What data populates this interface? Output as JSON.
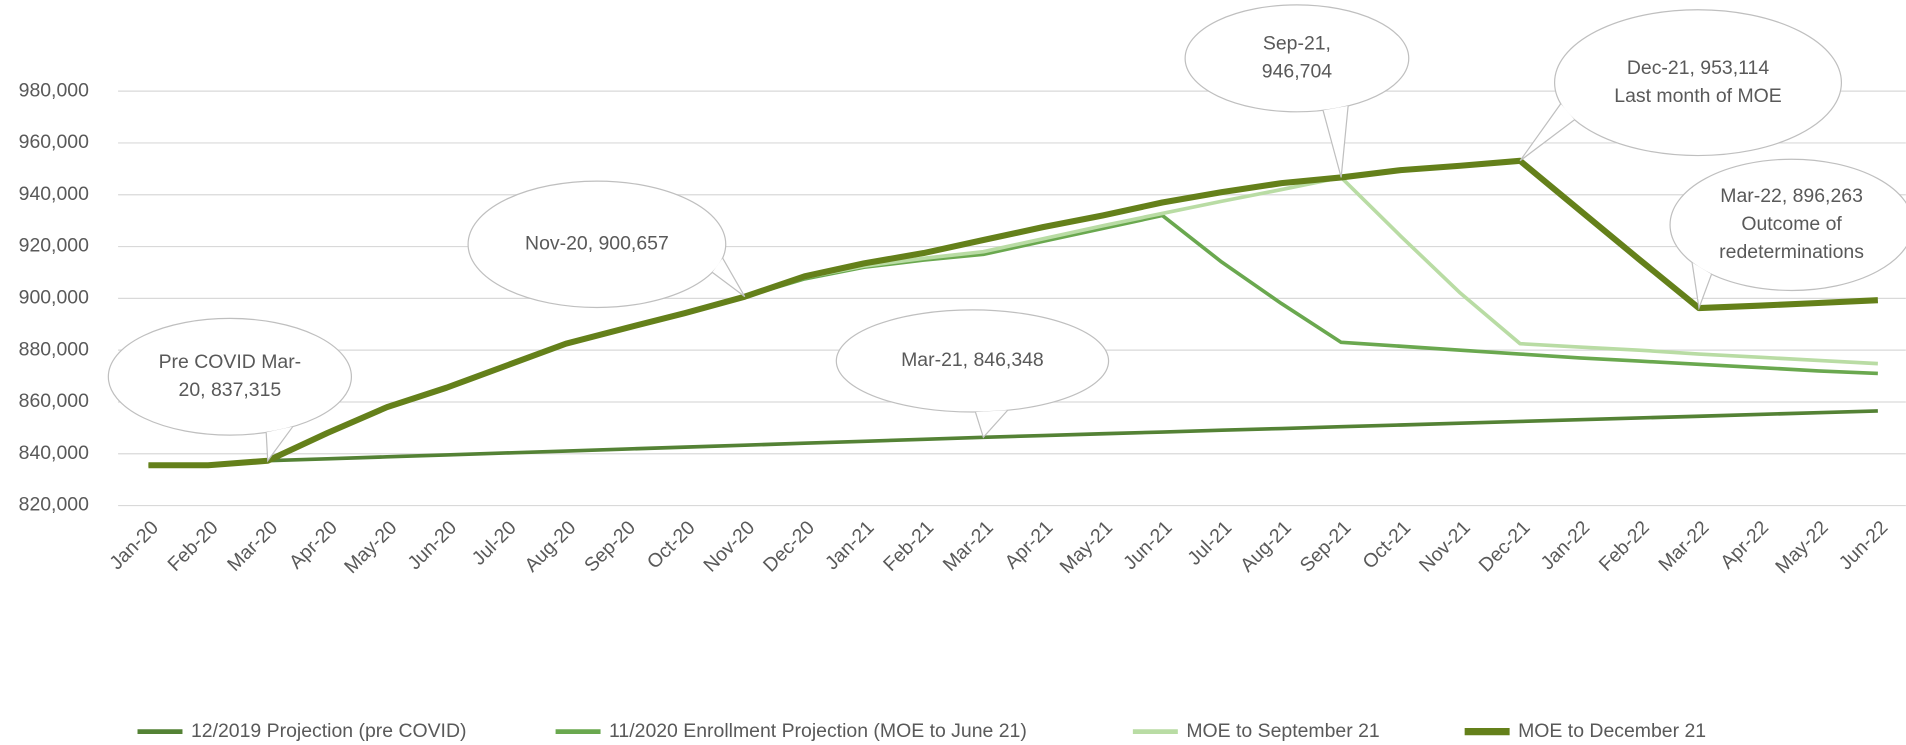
{
  "chart_data": {
    "type": "line",
    "categories": [
      "Jan-20",
      "Feb-20",
      "Mar-20",
      "Apr-20",
      "May-20",
      "Jun-20",
      "Jul-20",
      "Aug-20",
      "Sep-20",
      "Oct-20",
      "Nov-20",
      "Dec-20",
      "Jan-21",
      "Feb-21",
      "Mar-21",
      "Apr-21",
      "May-21",
      "Jun-21",
      "Jul-21",
      "Aug-21",
      "Sep-21",
      "Oct-21",
      "Nov-21",
      "Dec-21",
      "Jan-22",
      "Feb-22",
      "Mar-22",
      "Apr-22",
      "May-22",
      "Jun-22"
    ],
    "series": [
      {
        "name": "12/2019 Projection (pre COVID)",
        "color": "#548235",
        "values": [
          835600,
          835800,
          837315,
          838070,
          838820,
          839570,
          840320,
          841070,
          841820,
          842570,
          843320,
          844070,
          844820,
          845570,
          846348,
          847030,
          847710,
          848390,
          849070,
          849750,
          850430,
          851110,
          851790,
          852470,
          853150,
          853830,
          854510,
          855190,
          855870,
          856550
        ]
      },
      {
        "name": "11/2020 Enrollment Projection (MOE to June 21)",
        "color": "#6aa84f",
        "values": [
          835600,
          835600,
          837315,
          848000,
          858000,
          865500,
          874000,
          882500,
          888500,
          894300,
          900657,
          907500,
          912000,
          914800,
          917000,
          922000,
          927000,
          932000,
          914000,
          898000,
          883000,
          881500,
          880000,
          878500,
          877000,
          875800,
          874500,
          873300,
          872000,
          871000
        ]
      },
      {
        "name": "MOE to September 21",
        "color": "#b9dca4",
        "values": [
          835600,
          835600,
          837315,
          848000,
          858000,
          865500,
          874000,
          882500,
          888500,
          894300,
          900657,
          908000,
          912500,
          915500,
          918000,
          923000,
          928000,
          932800,
          937500,
          942000,
          946704,
          924000,
          902000,
          882500,
          881200,
          880000,
          878500,
          877300,
          876000,
          874800
        ]
      },
      {
        "name": "MOE to December 21",
        "color": "#64801a",
        "values": [
          835600,
          835600,
          837315,
          848000,
          858000,
          865500,
          874000,
          882500,
          888500,
          894300,
          900657,
          908500,
          913500,
          917500,
          922500,
          927500,
          932000,
          937000,
          941000,
          944500,
          946704,
          949500,
          951200,
          953114,
          934000,
          915000,
          896263,
          897200,
          898200,
          899300
        ]
      }
    ],
    "ylim": [
      820000,
      980000
    ],
    "yticks": [
      {
        "value": 820000,
        "label": "820,000"
      },
      {
        "value": 840000,
        "label": "840,000"
      },
      {
        "value": 860000,
        "label": "860,000"
      },
      {
        "value": 880000,
        "label": "880,000"
      },
      {
        "value": 900000,
        "label": "900,000"
      },
      {
        "value": 920000,
        "label": "920,000"
      },
      {
        "value": 940000,
        "label": "940,000"
      },
      {
        "value": 960000,
        "label": "960,000"
      },
      {
        "value": 980000,
        "label": "980,000"
      }
    ],
    "grid": true,
    "legend": "bottom",
    "annotations": [
      {
        "lines": [
          "Pre COVID Mar-",
          "20,  837,315"
        ]
      },
      {
        "lines": [
          "Nov-20, 900,657"
        ]
      },
      {
        "lines": [
          "Mar-21,  846,348"
        ]
      },
      {
        "lines": [
          "Sep-21,",
          "946,704"
        ]
      },
      {
        "lines": [
          "Dec-21, 953,114",
          "Last month of MOE"
        ]
      },
      {
        "lines": [
          "Mar-22,  896,263",
          "Outcome of",
          "redeterminations"
        ]
      }
    ]
  }
}
